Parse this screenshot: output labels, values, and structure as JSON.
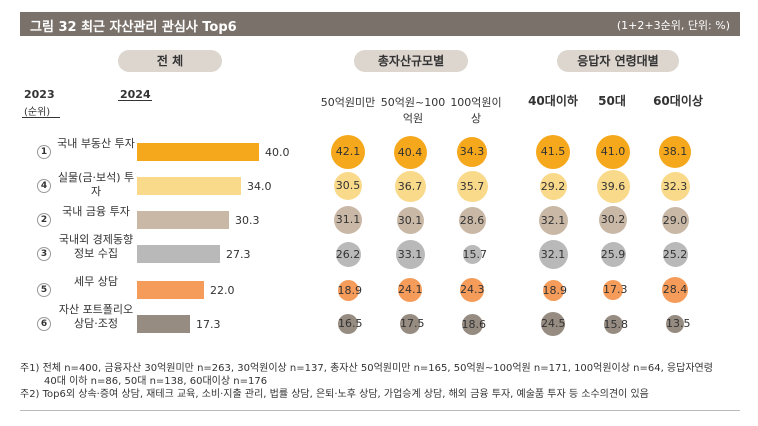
{
  "header": {
    "title": "그림 32  최근 자산관리 관심사 Top6",
    "note": "(1+2+3순위, 단위: %)"
  },
  "sections": {
    "overall": "전 체",
    "asset": "총자산규모별",
    "age": "응답자 연령대별"
  },
  "years": {
    "prev": "2023",
    "prev_sub": "(순위)",
    "curr": "2024"
  },
  "chart_data": {
    "type": "bar",
    "title": "최근 자산관리 관심사 Top6",
    "unit": "%",
    "categories": [
      "국내 부동산 투자",
      "실물(금·보석) 투자",
      "국내 금융 투자",
      "국내외 경제동향 정보 수집",
      "세무 상담",
      "자산 포트폴리오 상담·조정"
    ],
    "prev_rank_2023": [
      "1",
      "4",
      "2",
      "3",
      "5",
      "6"
    ],
    "values": [
      40.0,
      34.0,
      30.3,
      27.3,
      22.0,
      17.3
    ],
    "value_labels": [
      "40.0",
      "34.0",
      "30.3",
      "27.3",
      "22.0",
      "17.3"
    ],
    "bar_colors": [
      "#f5a81c",
      "#f9d98a",
      "#c9b8a6",
      "#b9b9b9",
      "#f59c5a",
      "#968c82"
    ],
    "group_series": [
      {
        "name": "50억원미만",
        "values": [
          "42.1",
          "30.5",
          "31.1",
          "26.2",
          "18.9",
          "16.5"
        ]
      },
      {
        "name": "50억원~100억원",
        "values": [
          "40.4",
          "36.7",
          "30.1",
          "33.1",
          "24.1",
          "17.5"
        ]
      },
      {
        "name": "100억원이상",
        "values": [
          "34.3",
          "35.7",
          "28.6",
          "15.7",
          "24.3",
          "18.6"
        ]
      },
      {
        "name": "40대이하",
        "values": [
          "41.5",
          "29.2",
          "32.1",
          "32.1",
          "18.9",
          "24.5"
        ]
      },
      {
        "name": "50대",
        "values": [
          "41.0",
          "39.6",
          "30.2",
          "25.9",
          "17.3",
          "15.8"
        ]
      },
      {
        "name": "60대이상",
        "values": [
          "38.1",
          "32.3",
          "29.0",
          "25.2",
          "28.4",
          "13.5"
        ]
      }
    ]
  },
  "footnotes": [
    "주1) 전체 n=400, 금융자산 30억원미만 n=263, 30억원이상 n=137, 총자산 50억원미만 n=165, 50억원~100억원 n=171, 100억원이상 n=64, 응답자연령",
    "40대 이하 n=86, 50대 n=138, 60대이상 n=176",
    "주2) Top6외 상속·증여 상담, 재테크 교육, 소비·지출 관리, 법률 상담, 은퇴·노후 상담, 가업승계 상담, 해외 금융 투자, 예술품 투자 등 소수의견이 있음"
  ]
}
